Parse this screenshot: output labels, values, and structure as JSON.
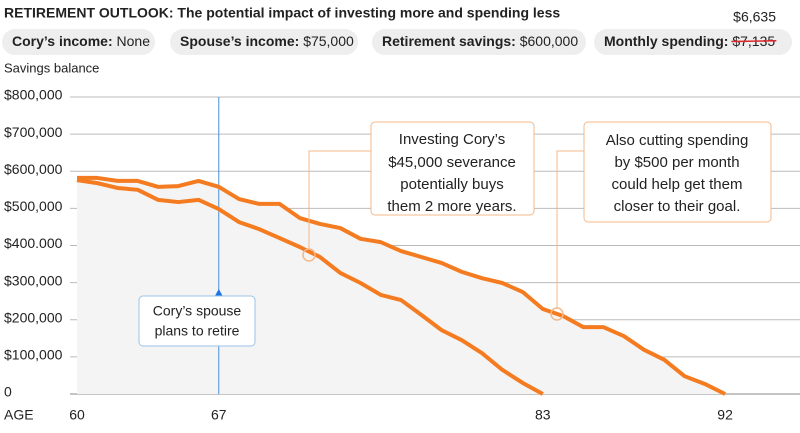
{
  "chart_data": {
    "type": "line",
    "title": "RETIREMENT OUTLOOK: The potential impact of investing more and spending less",
    "pills": [
      {
        "label": "Cory’s income:",
        "value": "None"
      },
      {
        "label": "Spouse’s income:",
        "value": "$75,000"
      },
      {
        "label": "Retirement savings:",
        "value": "$600,000"
      },
      {
        "label": "Monthly spending:",
        "value": "$7,135",
        "new_value": "$6,635"
      }
    ],
    "y_label": "Savings balance",
    "x_label": "AGE",
    "x": [
      60,
      61,
      62,
      63,
      64,
      65,
      66,
      67,
      68,
      69,
      70,
      71,
      72,
      73,
      74,
      75,
      76,
      77,
      78,
      79,
      80,
      81,
      82,
      83,
      84,
      85,
      86,
      87,
      88,
      89,
      90,
      91,
      92
    ],
    "xlim": [
      60,
      95.6
    ],
    "xticks": [
      60,
      67,
      83,
      92
    ],
    "ylim": [
      0,
      800000
    ],
    "yticks": [
      0,
      {
        "value": 100000,
        "label": "$100,000"
      },
      {
        "value": 200000,
        "label": "$200,000"
      },
      {
        "value": 300000,
        "label": "$300,000"
      },
      {
        "value": 400000,
        "label": "$400.000"
      },
      {
        "value": 500000,
        "label": "$500,000"
      },
      {
        "value": 600000,
        "label": "$600,000"
      },
      {
        "value": 700000,
        "label": "$700,000"
      },
      {
        "value": 800000,
        "label": "$800,000"
      }
    ],
    "grid": true,
    "series": [
      {
        "color": "#f47b20",
        "values": [
          582000,
          582000,
          574000,
          574000,
          558000,
          560000,
          574000,
          558000,
          525000,
          512000,
          512000,
          474000,
          458000,
          447000,
          418000,
          409000,
          385000,
          369000,
          353000,
          329000,
          312000,
          299000,
          275000,
          229000,
          210000,
          180000,
          180000,
          156000,
          119000,
          92000,
          48000,
          27000,
          0
        ]
      },
      {
        "color": "#f47b20",
        "values": [
          576000,
          568000,
          555000,
          550000,
          523000,
          517000,
          523000,
          498000,
          463000,
          444000,
          420000,
          396000,
          369000,
          326000,
          299000,
          267000,
          253000,
          213000,
          172000,
          145000,
          110000,
          65000,
          30000,
          0,
          null,
          null,
          null,
          null,
          null,
          null,
          null,
          null,
          null
        ]
      }
    ],
    "annotations": [
      [
        "Investing Cory’s",
        "$45,000 severance",
        "potentially buys",
        "them 2 more years."
      ],
      [
        "Also cutting spending",
        "by $500 per month",
        "could help get them",
        "closer to their goal."
      ],
      [
        "Cory’s spouse",
        "plans to retire"
      ]
    ]
  }
}
